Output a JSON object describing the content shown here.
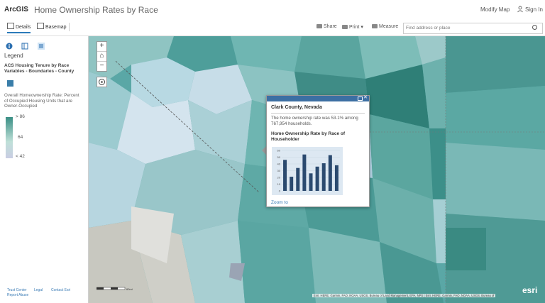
{
  "header": {
    "brand": "ArcGIS",
    "title": "Home Ownership Rates by Race",
    "modify_map": "Modify Map",
    "sign_in": "Sign In"
  },
  "toolbar": {
    "tabs": [
      {
        "label": "Details"
      },
      {
        "label": "Basemap"
      }
    ],
    "share": "Share",
    "print": "Print",
    "measure": "Measure",
    "search_placeholder": "Find address or place"
  },
  "sidebar": {
    "legend_title": "Legend",
    "layer_title": "ACS Housing Tenure by Race Variables - Boundaries - County",
    "field_label": "Overall Homeownership Rate: Percent of Occupied Housing Units that are Owner-Occupied",
    "ramp": {
      "high": "> 86",
      "mid": "64",
      "low": "< 42"
    },
    "footer": {
      "trust": "Trust Center",
      "legal": "Legal",
      "contact": "Contact Esri",
      "report": "Report Abuse"
    }
  },
  "popup": {
    "title": "Clark County, Nevada",
    "text": "The home ownership rate was 53.1% among 767,954 households.",
    "chart_title": "Home Ownership Rate by Race of Householder",
    "zoom_to": "Zoom to"
  },
  "chart_data": {
    "type": "bar",
    "title": "Home Ownership Rate by Race of Householder",
    "ylim": [
      0,
      60
    ],
    "yticks": [
      0,
      10,
      20,
      30,
      40,
      50,
      60
    ],
    "values": [
      46,
      21,
      34,
      54,
      26,
      36,
      41,
      53,
      38
    ],
    "color": "#2b4a6f"
  },
  "map": {
    "attribution": "Esri, HERE, Garmin, FAO, NOAA, USGS, Bureau of Land Management, EPA, NPS | Esri, HERE, Garmin, FAO, NOAA, USGS, Bureau of",
    "scale": "60mi",
    "logo": "esri"
  },
  "colors": {
    "accent": "#3c6fa3",
    "choropleth_dark": "#3a8f85",
    "choropleth_light": "#c9cde3"
  }
}
